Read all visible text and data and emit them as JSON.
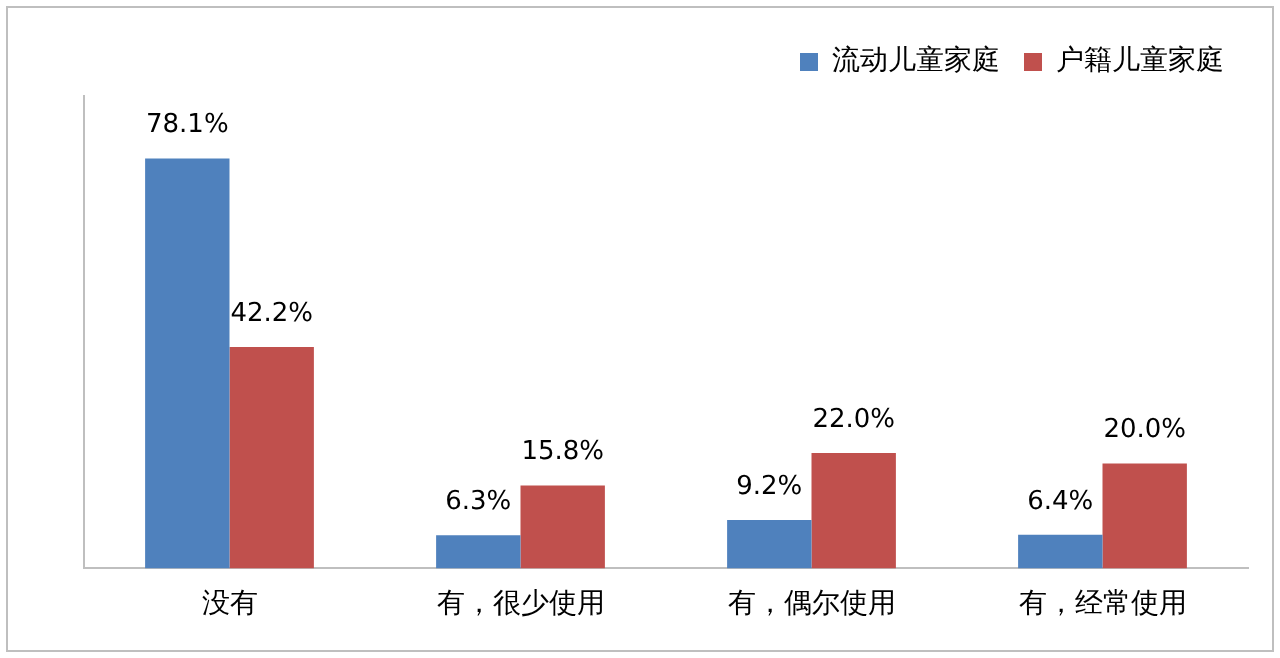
{
  "chart_data": {
    "type": "bar",
    "categories": [
      "没有",
      "有，很少使用",
      "有，偶尔使用",
      "有，经常使用"
    ],
    "series": [
      {
        "name": "流动儿童家庭",
        "color": "#4f81bd",
        "values": [
          78.1,
          6.3,
          9.2,
          6.4
        ],
        "value_labels": [
          "78.1%",
          "6.3%",
          "9.2%",
          "6.4%"
        ]
      },
      {
        "name": "户籍儿童家庭",
        "color": "#c0504d",
        "values": [
          42.2,
          15.8,
          22.0,
          20.0
        ],
        "value_labels": [
          "42.2%",
          "15.8%",
          "22.0%",
          "20.0%"
        ]
      }
    ],
    "legend": "top right",
    "grid": false,
    "tick_labels": "x"
  }
}
